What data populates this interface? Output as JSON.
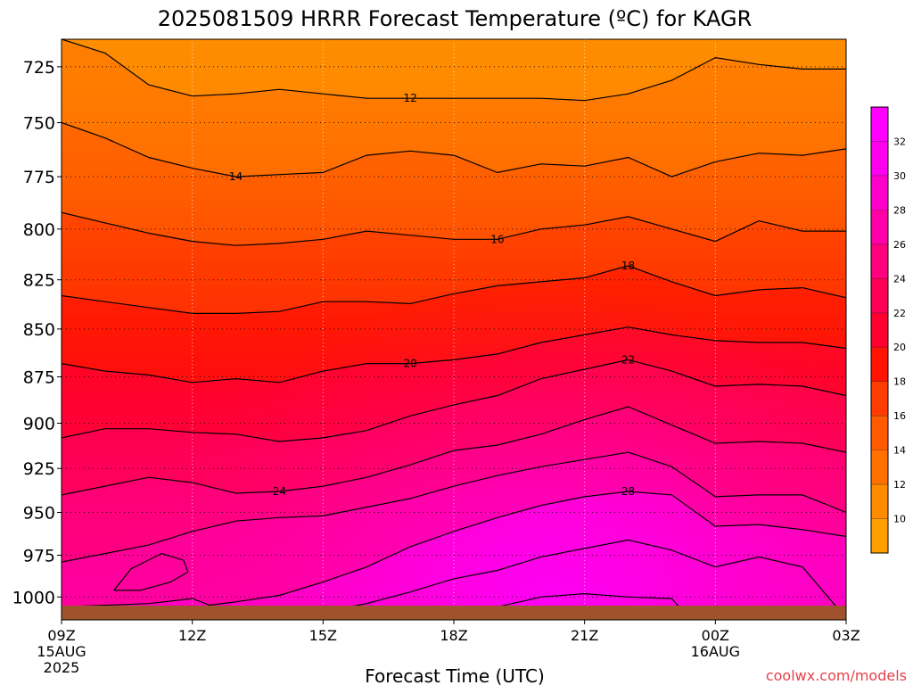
{
  "chart_data": {
    "type": "heatmap",
    "title": "2025081509 HRRR Forecast Temperature (ºC) for KAGR",
    "xlabel": "Forecast Time (UTC)",
    "ylabel": "",
    "credit": "coolwx.com/models",
    "x_ticks": [
      {
        "hour": 0,
        "label": "09Z",
        "sub": [
          "15AUG",
          "2025"
        ]
      },
      {
        "hour": 3,
        "label": "12Z",
        "sub": []
      },
      {
        "hour": 6,
        "label": "15Z",
        "sub": []
      },
      {
        "hour": 9,
        "label": "18Z",
        "sub": []
      },
      {
        "hour": 12,
        "label": "21Z",
        "sub": []
      },
      {
        "hour": 15,
        "label": "00Z",
        "sub": [
          "16AUG"
        ]
      },
      {
        "hour": 18,
        "label": "03Z",
        "sub": []
      }
    ],
    "xlim": [
      0,
      18
    ],
    "y_ticks": [
      725,
      750,
      775,
      800,
      825,
      850,
      875,
      900,
      925,
      950,
      975,
      1000
    ],
    "ylim": [
      1014,
      713
    ],
    "y_scale": "log-pressure",
    "grid": true,
    "colorbar": {
      "min": 8,
      "max": 34,
      "step": 2,
      "tick_labels": [
        10,
        12,
        14,
        16,
        18,
        20,
        22,
        24,
        26,
        28,
        30,
        32
      ],
      "colors": [
        "#ffa000",
        "#ff8c00",
        "#ff7200",
        "#ff5a00",
        "#ff3c00",
        "#ff1400",
        "#ff0030",
        "#ff0058",
        "#ff0080",
        "#ff00a8",
        "#ff00cc",
        "#ff00ee",
        "#ff00ff"
      ]
    },
    "contours": [
      {
        "level": 12,
        "label": "12",
        "label_at": 8.0,
        "points": [
          [
            0,
            713
          ],
          [
            1,
            719
          ],
          [
            2,
            733
          ],
          [
            3,
            738
          ],
          [
            4,
            737
          ],
          [
            5,
            735
          ],
          [
            6,
            737
          ],
          [
            7,
            739
          ],
          [
            8,
            739
          ],
          [
            9,
            739
          ],
          [
            10,
            739
          ],
          [
            11,
            739
          ],
          [
            12,
            740
          ],
          [
            13,
            737
          ],
          [
            14,
            731
          ],
          [
            15,
            721
          ],
          [
            16,
            724
          ],
          [
            17,
            726
          ],
          [
            18,
            726
          ]
        ]
      },
      {
        "level": 14,
        "label": "14",
        "label_at": 4.0,
        "points": [
          [
            0,
            750
          ],
          [
            1,
            757
          ],
          [
            2,
            766
          ],
          [
            3,
            771
          ],
          [
            4,
            775
          ],
          [
            5,
            774
          ],
          [
            6,
            773
          ],
          [
            7,
            765
          ],
          [
            8,
            763
          ],
          [
            9,
            765
          ],
          [
            10,
            773
          ],
          [
            11,
            769
          ],
          [
            12,
            770
          ],
          [
            13,
            766
          ],
          [
            14,
            775
          ],
          [
            15,
            768
          ],
          [
            16,
            764
          ],
          [
            17,
            765
          ],
          [
            18,
            762
          ]
        ]
      },
      {
        "level": 16,
        "label": "16",
        "label_at": 10.0,
        "points": [
          [
            0,
            792
          ],
          [
            1,
            797
          ],
          [
            2,
            802
          ],
          [
            3,
            806
          ],
          [
            4,
            808
          ],
          [
            5,
            807
          ],
          [
            6,
            805
          ],
          [
            7,
            801
          ],
          [
            8,
            803
          ],
          [
            9,
            805
          ],
          [
            10,
            805
          ],
          [
            11,
            800
          ],
          [
            12,
            798
          ],
          [
            13,
            794
          ],
          [
            14,
            800
          ],
          [
            15,
            806
          ],
          [
            16,
            796
          ],
          [
            17,
            801
          ],
          [
            18,
            801
          ]
        ]
      },
      {
        "level": 18,
        "label": "18",
        "label_at": 13.0,
        "points": [
          [
            0,
            833
          ],
          [
            1,
            836
          ],
          [
            2,
            839
          ],
          [
            3,
            842
          ],
          [
            4,
            842
          ],
          [
            5,
            841
          ],
          [
            6,
            836
          ],
          [
            7,
            836
          ],
          [
            8,
            837
          ],
          [
            9,
            832
          ],
          [
            10,
            828
          ],
          [
            11,
            826
          ],
          [
            12,
            824
          ],
          [
            13,
            818
          ],
          [
            14,
            826
          ],
          [
            15,
            833
          ],
          [
            16,
            830
          ],
          [
            17,
            829
          ],
          [
            18,
            834
          ]
        ]
      },
      {
        "level": 20,
        "label": "20",
        "label_at": 8.0,
        "points": [
          [
            0,
            868
          ],
          [
            1,
            872
          ],
          [
            2,
            874
          ],
          [
            3,
            878
          ],
          [
            4,
            876
          ],
          [
            5,
            878
          ],
          [
            6,
            872
          ],
          [
            7,
            868
          ],
          [
            8,
            868
          ],
          [
            9,
            866
          ],
          [
            10,
            863
          ],
          [
            11,
            857
          ],
          [
            12,
            853
          ],
          [
            13,
            849
          ],
          [
            14,
            853
          ],
          [
            15,
            856
          ],
          [
            16,
            857
          ],
          [
            17,
            857
          ],
          [
            18,
            860
          ]
        ]
      },
      {
        "level": 22,
        "label": "22",
        "label_at": 13.0,
        "points": [
          [
            0,
            908
          ],
          [
            1,
            903
          ],
          [
            2,
            903
          ],
          [
            3,
            905
          ],
          [
            4,
            906
          ],
          [
            5,
            910
          ],
          [
            6,
            908
          ],
          [
            7,
            904
          ],
          [
            8,
            896
          ],
          [
            9,
            890
          ],
          [
            10,
            885
          ],
          [
            11,
            876
          ],
          [
            12,
            871
          ],
          [
            13,
            866
          ],
          [
            14,
            872
          ],
          [
            15,
            880
          ],
          [
            16,
            879
          ],
          [
            17,
            880
          ],
          [
            18,
            885
          ]
        ]
      },
      {
        "level": 24,
        "label": "24",
        "label_at": 5.0,
        "points": [
          [
            0,
            940
          ],
          [
            1,
            935
          ],
          [
            2,
            930
          ],
          [
            3,
            933
          ],
          [
            4,
            939
          ],
          [
            5,
            938
          ],
          [
            6,
            935
          ],
          [
            7,
            930
          ],
          [
            8,
            923
          ],
          [
            9,
            915
          ],
          [
            10,
            912
          ],
          [
            11,
            906
          ],
          [
            12,
            898
          ],
          [
            13,
            891
          ],
          [
            14,
            901
          ],
          [
            15,
            911
          ],
          [
            16,
            910
          ],
          [
            17,
            911
          ],
          [
            18,
            916
          ]
        ]
      },
      {
        "level": 26,
        "label": "",
        "points": [
          [
            0,
            979
          ],
          [
            1,
            974
          ],
          [
            2,
            969
          ],
          [
            3,
            961
          ],
          [
            4,
            955
          ],
          [
            5,
            953
          ],
          [
            6,
            952
          ],
          [
            7,
            947
          ],
          [
            8,
            942
          ],
          [
            9,
            935
          ],
          [
            10,
            929
          ],
          [
            11,
            924
          ],
          [
            12,
            920
          ],
          [
            13,
            916
          ],
          [
            14,
            924
          ],
          [
            15,
            941
          ],
          [
            16,
            940
          ],
          [
            17,
            940
          ],
          [
            18,
            950
          ]
        ]
      },
      {
        "level": 28,
        "label": "28",
        "label_at": 13.0,
        "points": [
          [
            0,
            1006
          ],
          [
            2,
            1004
          ],
          [
            3,
            1001
          ],
          [
            3.4,
            1005
          ],
          [
            4,
            1003
          ],
          [
            5,
            999
          ],
          [
            6,
            991
          ],
          [
            7,
            982
          ],
          [
            8,
            970
          ],
          [
            9,
            961
          ],
          [
            10,
            953
          ],
          [
            11,
            946
          ],
          [
            12,
            941
          ],
          [
            13,
            938
          ],
          [
            14,
            940
          ],
          [
            15,
            958
          ],
          [
            16,
            957
          ],
          [
            17,
            960
          ],
          [
            18,
            964
          ]
        ]
      },
      {
        "level": 30,
        "label": "",
        "points": [
          [
            5,
            1012
          ],
          [
            6,
            1009
          ],
          [
            7,
            1004
          ],
          [
            8,
            997
          ],
          [
            9,
            989
          ],
          [
            10,
            984
          ],
          [
            11,
            976
          ],
          [
            12,
            971
          ],
          [
            13,
            966
          ],
          [
            14,
            972
          ],
          [
            15,
            982
          ],
          [
            16,
            976
          ],
          [
            17,
            982
          ],
          [
            18,
            1013
          ]
        ]
      },
      {
        "level": 32,
        "label": "",
        "points": [
          [
            9,
            1010
          ],
          [
            10,
            1006
          ],
          [
            11,
            1000
          ],
          [
            12,
            998
          ],
          [
            13,
            1000
          ],
          [
            14,
            1001
          ],
          [
            14.3,
            1010
          ]
        ]
      },
      {
        "level": 28,
        "label": "",
        "points": [
          [
            1.2,
            996
          ],
          [
            1.6,
            983
          ],
          [
            2.3,
            974
          ],
          [
            2.8,
            978
          ],
          [
            2.9,
            985
          ],
          [
            2.5,
            991
          ],
          [
            1.8,
            996
          ],
          [
            1.2,
            996
          ]
        ]
      }
    ]
  }
}
